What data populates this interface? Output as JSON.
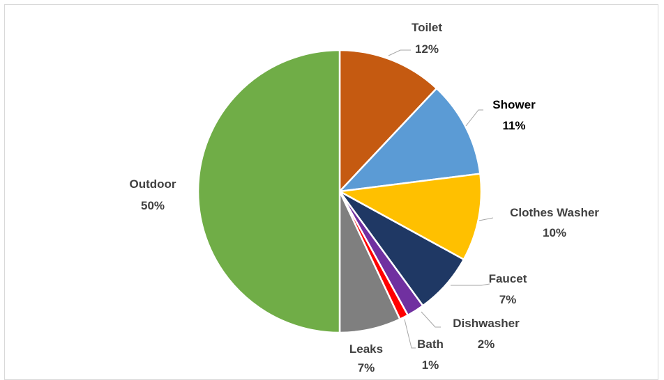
{
  "chart_data": {
    "type": "pie",
    "categories": [
      "Toilet",
      "Shower",
      "Clothes Washer",
      "Faucet",
      "Dishwasher",
      "Bath",
      "Leaks",
      "Outdoor"
    ],
    "values": [
      12,
      11,
      10,
      7,
      2,
      1,
      7,
      50
    ],
    "value_labels": [
      "12%",
      "11%",
      "10%",
      "7%",
      "2%",
      "1%",
      "7%",
      "50%"
    ],
    "colors": [
      "#C55A11",
      "#5B9BD5",
      "#FFC000",
      "#1F3864",
      "#7030A0",
      "#FF0000",
      "#7F7F7F",
      "#70AD47"
    ],
    "start_angle_deg": 0,
    "direction": "clockwise",
    "legend": "none",
    "title": ""
  }
}
